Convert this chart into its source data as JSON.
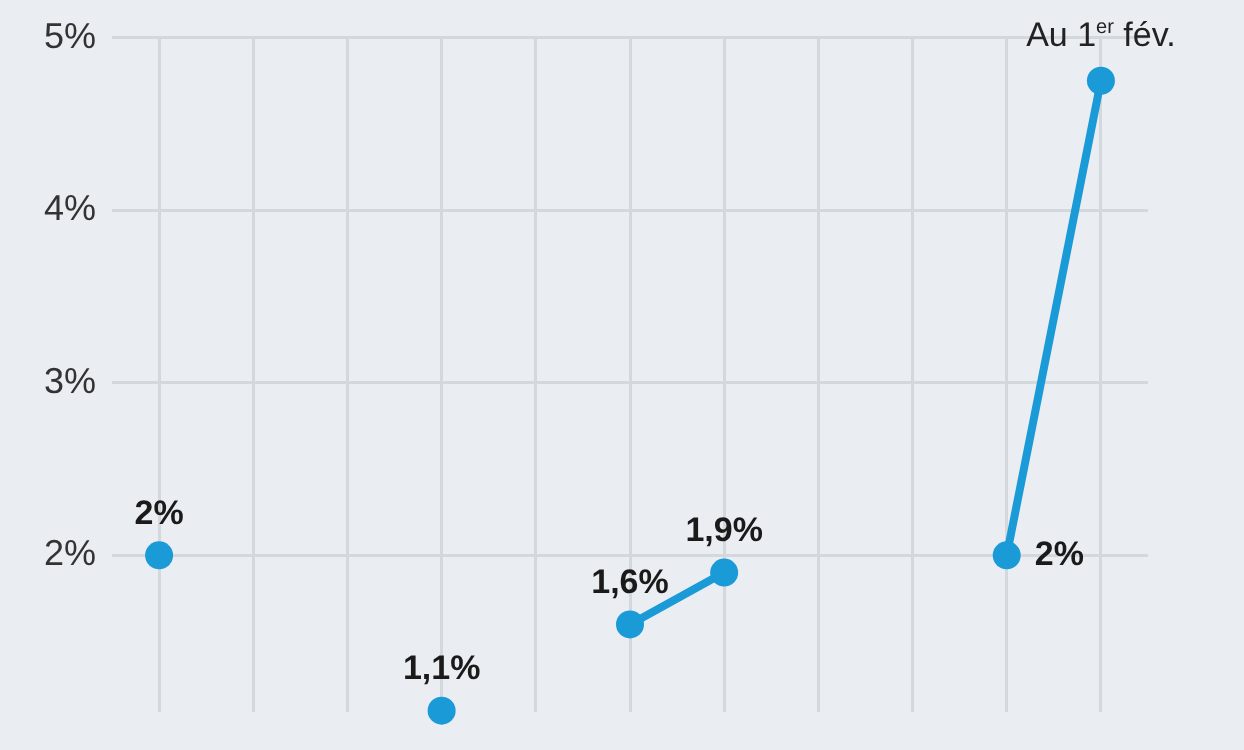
{
  "chart_data": {
    "type": "line",
    "categories": [
      null,
      null,
      null,
      null,
      null,
      null,
      null,
      null,
      null,
      null,
      null
    ],
    "series": [
      {
        "color": "#1a9ad6",
        "values": [
          2,
          null,
          null,
          1.1,
          null,
          1.6,
          1.9,
          null,
          null,
          2,
          4.75
        ],
        "value_labels": [
          "2%",
          null,
          null,
          "1,1%",
          null,
          "1,6%",
          "1,9%",
          null,
          null,
          "2%",
          null
        ]
      }
    ],
    "ylim": [
      1.09,
      5
    ],
    "yticks": [
      {
        "value": 2,
        "label": "2%"
      },
      {
        "value": 3,
        "label": "3%"
      },
      {
        "value": 4,
        "label": "4%"
      },
      {
        "value": 5,
        "label": "5%"
      }
    ],
    "annotations": [
      "Au 1$^{er}$ fév."
    ],
    "grid": true,
    "legend": false,
    "marker": "circle",
    "line_style": "solid",
    "tick_labels": "y"
  }
}
